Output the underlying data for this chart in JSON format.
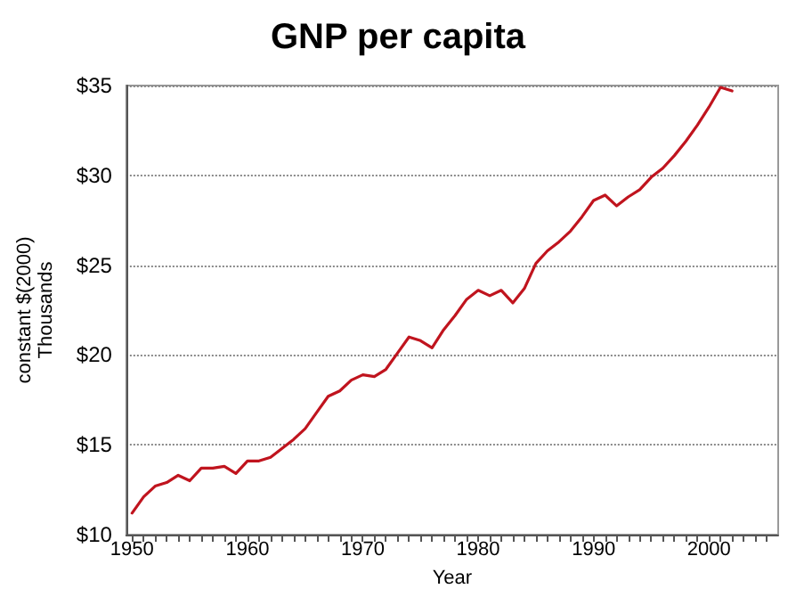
{
  "chart_data": {
    "type": "line",
    "title": "GNP per capita",
    "xlabel": "Year",
    "ylabel": "constant $(2000)\nThousands",
    "x": [
      1950,
      1951,
      1952,
      1953,
      1954,
      1955,
      1956,
      1957,
      1958,
      1959,
      1960,
      1961,
      1962,
      1963,
      1964,
      1965,
      1966,
      1967,
      1968,
      1969,
      1970,
      1971,
      1972,
      1973,
      1974,
      1975,
      1976,
      1977,
      1978,
      1979,
      1980,
      1981,
      1982,
      1983,
      1984,
      1985,
      1986,
      1987,
      1988,
      1989,
      1990,
      1991,
      1992,
      1993,
      1994,
      1995,
      1996,
      1997,
      1998,
      1999,
      2000,
      2001,
      2002
    ],
    "series": [
      {
        "color": "#c0141e",
        "values": [
          11.2,
          12.1,
          12.7,
          12.9,
          13.3,
          13.0,
          13.7,
          13.7,
          13.8,
          13.4,
          14.1,
          14.1,
          14.3,
          14.8,
          15.3,
          15.9,
          16.8,
          17.7,
          18.0,
          18.6,
          18.9,
          18.8,
          19.2,
          20.1,
          21.0,
          20.8,
          20.4,
          21.4,
          22.2,
          23.1,
          23.6,
          23.3,
          23.6,
          22.9,
          23.7,
          25.1,
          25.8,
          26.3,
          26.9,
          27.7,
          28.6,
          28.9,
          28.3,
          28.8,
          29.2,
          29.9,
          30.4,
          31.1,
          31.9,
          32.8,
          33.8,
          34.9,
          34.7
        ]
      }
    ],
    "xlim": [
      1949.5,
      2006
    ],
    "xticks": [
      1950,
      {
        "value": 1951,
        "label": null
      },
      {
        "value": 1952,
        "label": null
      },
      {
        "value": 1953,
        "label": null
      },
      {
        "value": 1954,
        "label": null
      },
      {
        "value": 1955,
        "label": null
      },
      {
        "value": 1956,
        "label": null
      },
      {
        "value": 1957,
        "label": null
      },
      {
        "value": 1958,
        "label": null
      },
      {
        "value": 1959,
        "label": null
      },
      1960,
      {
        "value": 1961,
        "label": null
      },
      {
        "value": 1962,
        "label": null
      },
      {
        "value": 1963,
        "label": null
      },
      {
        "value": 1964,
        "label": null
      },
      {
        "value": 1965,
        "label": null
      },
      {
        "value": 1966,
        "label": null
      },
      {
        "value": 1967,
        "label": null
      },
      {
        "value": 1968,
        "label": null
      },
      {
        "value": 1969,
        "label": null
      },
      1970,
      {
        "value": 1971,
        "label": null
      },
      {
        "value": 1972,
        "label": null
      },
      {
        "value": 1973,
        "label": null
      },
      {
        "value": 1974,
        "label": null
      },
      {
        "value": 1975,
        "label": null
      },
      {
        "value": 1976,
        "label": null
      },
      {
        "value": 1977,
        "label": null
      },
      {
        "value": 1978,
        "label": null
      },
      {
        "value": 1979,
        "label": null
      },
      1980,
      {
        "value": 1981,
        "label": null
      },
      {
        "value": 1982,
        "label": null
      },
      {
        "value": 1983,
        "label": null
      },
      {
        "value": 1984,
        "label": null
      },
      {
        "value": 1985,
        "label": null
      },
      {
        "value": 1986,
        "label": null
      },
      {
        "value": 1987,
        "label": null
      },
      {
        "value": 1988,
        "label": null
      },
      {
        "value": 1989,
        "label": null
      },
      1990,
      {
        "value": 1991,
        "label": null
      },
      {
        "value": 1992,
        "label": null
      },
      {
        "value": 1993,
        "label": null
      },
      {
        "value": 1994,
        "label": null
      },
      {
        "value": 1995,
        "label": null
      },
      {
        "value": 1996,
        "label": null
      },
      {
        "value": 1997,
        "label": null
      },
      {
        "value": 1998,
        "label": null
      },
      {
        "value": 1999,
        "label": null
      },
      2000,
      {
        "value": 2001,
        "label": null
      },
      {
        "value": 2002,
        "label": null
      },
      {
        "value": 2003,
        "label": null
      },
      {
        "value": 2004,
        "label": null
      },
      {
        "value": 2005,
        "label": null
      }
    ],
    "ylim": [
      10,
      35
    ],
    "yticks": [
      {
        "value": 10,
        "label": "$10"
      },
      {
        "value": 15,
        "label": "$15"
      },
      {
        "value": 20,
        "label": "$20"
      },
      {
        "value": 25,
        "label": "$25"
      },
      {
        "value": 30,
        "label": "$30"
      },
      {
        "value": 35,
        "label": "$35"
      }
    ],
    "grid": "y",
    "marker": "none",
    "line_style": "solid"
  }
}
